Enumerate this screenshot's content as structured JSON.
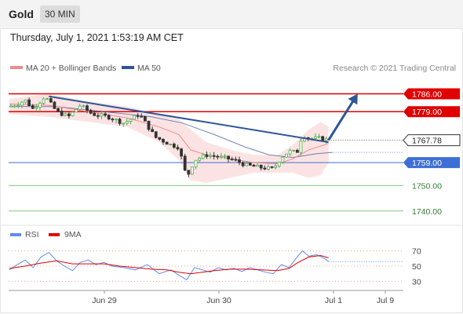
{
  "header": {
    "title": "Gold",
    "timeframe": "30 MIN"
  },
  "datetime": "Thursday, July 1, 2021 1:53:19 AM CET",
  "legend": {
    "items": [
      {
        "label": "MA 20 + Bollinger Bands",
        "color": "#f08b8b"
      },
      {
        "label": "MA 50",
        "color": "#2f5597"
      }
    ],
    "credit": "Research © 2021 Trading Central"
  },
  "colors": {
    "up": "#4caf50",
    "down": "#333333",
    "resistance": "#e00000",
    "support": "#3d6fd6",
    "target": "#4caf50",
    "trend": "#2f5597",
    "band": "#fbdede"
  },
  "chart_data": [
    {
      "type": "line",
      "title": "",
      "xlabel": "",
      "ylabel": "",
      "x_ticks": [
        "Jun 29",
        "Jun 30",
        "Jul 1",
        "Jul 9"
      ],
      "ylim": [
        1735,
        1792
      ],
      "current_price": {
        "value": 1767.78,
        "label": "1767.78"
      },
      "levels": [
        {
          "value": 1786.0,
          "label": "1786.00",
          "kind": "resistance"
        },
        {
          "value": 1779.0,
          "label": "1779.00",
          "kind": "resistance"
        },
        {
          "value": 1759.0,
          "label": "1759.00",
          "kind": "support"
        },
        {
          "value": 1750.0,
          "label": "1750.00",
          "kind": "target"
        },
        {
          "value": 1740.0,
          "label": "1740.00",
          "kind": "target"
        }
      ],
      "price_path": [
        [
          0,
          1781
        ],
        [
          10,
          1782
        ],
        [
          20,
          1783.5
        ],
        [
          30,
          1780
        ],
        [
          45,
          1785
        ],
        [
          60,
          1779
        ],
        [
          75,
          1777
        ],
        [
          90,
          1781.5
        ],
        [
          105,
          1778
        ],
        [
          125,
          1777
        ],
        [
          145,
          1774.5
        ],
        [
          165,
          1778
        ],
        [
          185,
          1769
        ],
        [
          205,
          1766
        ],
        [
          215,
          1765
        ],
        [
          225,
          1753
        ],
        [
          235,
          1760
        ],
        [
          250,
          1762
        ],
        [
          270,
          1761
        ],
        [
          285,
          1760
        ],
        [
          300,
          1758
        ],
        [
          320,
          1757
        ],
        [
          335,
          1756.5
        ],
        [
          345,
          1761
        ],
        [
          355,
          1763.5
        ],
        [
          365,
          1763
        ],
        [
          372,
          1770
        ],
        [
          380,
          1768.5
        ],
        [
          395,
          1768.5
        ],
        [
          405,
          1767.78
        ]
      ],
      "trend_line": {
        "from": [
          50,
          1785
        ],
        "to": [
          405,
          1767
        ]
      },
      "forecast_arrow": {
        "from": [
          405,
          1767.78
        ],
        "to": [
          442,
          1786
        ]
      },
      "ma20_path": [
        [
          0,
          1782
        ],
        [
          50,
          1781.5
        ],
        [
          100,
          1779
        ],
        [
          150,
          1776.5
        ],
        [
          190,
          1773
        ],
        [
          215,
          1770
        ],
        [
          230,
          1764
        ],
        [
          250,
          1762
        ],
        [
          280,
          1760.5
        ],
        [
          310,
          1759
        ],
        [
          340,
          1758.5
        ],
        [
          360,
          1760.5
        ],
        [
          380,
          1764
        ],
        [
          405,
          1766.5
        ]
      ],
      "ma50_path": [
        [
          0,
          1781
        ],
        [
          60,
          1781
        ],
        [
          120,
          1779
        ],
        [
          180,
          1777
        ],
        [
          220,
          1774.5
        ],
        [
          260,
          1770
        ],
        [
          300,
          1765
        ],
        [
          330,
          1762
        ],
        [
          360,
          1761
        ],
        [
          390,
          1762.5
        ],
        [
          410,
          1763
        ]
      ],
      "bollinger_upper": [
        [
          0,
          1784
        ],
        [
          50,
          1786
        ],
        [
          100,
          1783
        ],
        [
          150,
          1781
        ],
        [
          190,
          1778
        ],
        [
          215,
          1776
        ],
        [
          230,
          1772
        ],
        [
          250,
          1767
        ],
        [
          280,
          1764
        ],
        [
          310,
          1762
        ],
        [
          340,
          1762
        ],
        [
          360,
          1766
        ],
        [
          380,
          1772
        ],
        [
          395,
          1775
        ],
        [
          405,
          1773
        ]
      ],
      "bollinger_lower": [
        [
          0,
          1778
        ],
        [
          50,
          1777
        ],
        [
          100,
          1775
        ],
        [
          150,
          1773
        ],
        [
          190,
          1767
        ],
        [
          215,
          1760
        ],
        [
          230,
          1752
        ],
        [
          250,
          1751
        ],
        [
          280,
          1753
        ],
        [
          310,
          1755
        ],
        [
          340,
          1755
        ],
        [
          360,
          1755
        ],
        [
          380,
          1753
        ],
        [
          395,
          1754
        ],
        [
          405,
          1759
        ]
      ]
    },
    {
      "type": "line",
      "title": "",
      "legend": [
        {
          "label": "RSI",
          "color": "#5b8def"
        },
        {
          "label": "9MA",
          "color": "#e00000"
        }
      ],
      "ylim": [
        20,
        80
      ],
      "y_ticks": [
        70,
        50,
        30
      ],
      "rsi_path": [
        [
          0,
          45
        ],
        [
          10,
          52
        ],
        [
          20,
          58
        ],
        [
          30,
          48
        ],
        [
          40,
          62
        ],
        [
          50,
          68
        ],
        [
          60,
          57
        ],
        [
          70,
          50
        ],
        [
          80,
          44
        ],
        [
          90,
          55
        ],
        [
          100,
          58
        ],
        [
          110,
          52
        ],
        [
          120,
          55
        ],
        [
          130,
          50
        ],
        [
          145,
          48
        ],
        [
          160,
          45
        ],
        [
          175,
          52
        ],
        [
          190,
          40
        ],
        [
          205,
          45
        ],
        [
          215,
          38
        ],
        [
          225,
          32
        ],
        [
          235,
          48
        ],
        [
          245,
          45
        ],
        [
          255,
          42
        ],
        [
          265,
          48
        ],
        [
          275,
          45
        ],
        [
          285,
          47
        ],
        [
          295,
          43
        ],
        [
          305,
          48
        ],
        [
          315,
          45
        ],
        [
          325,
          42
        ],
        [
          335,
          40
        ],
        [
          345,
          52
        ],
        [
          355,
          48
        ],
        [
          365,
          62
        ],
        [
          372,
          70
        ],
        [
          380,
          63
        ],
        [
          390,
          65
        ],
        [
          400,
          60
        ],
        [
          405,
          56
        ]
      ],
      "ma9_path": [
        [
          0,
          47
        ],
        [
          20,
          50
        ],
        [
          40,
          54
        ],
        [
          60,
          57
        ],
        [
          80,
          53
        ],
        [
          100,
          53
        ],
        [
          120,
          53
        ],
        [
          140,
          50
        ],
        [
          160,
          48
        ],
        [
          180,
          46
        ],
        [
          200,
          45
        ],
        [
          215,
          42
        ],
        [
          230,
          40
        ],
        [
          245,
          42
        ],
        [
          260,
          44
        ],
        [
          280,
          46
        ],
        [
          300,
          46
        ],
        [
          320,
          45
        ],
        [
          340,
          44
        ],
        [
          355,
          47
        ],
        [
          365,
          54
        ],
        [
          380,
          62
        ],
        [
          395,
          64
        ],
        [
          405,
          61
        ]
      ]
    }
  ]
}
